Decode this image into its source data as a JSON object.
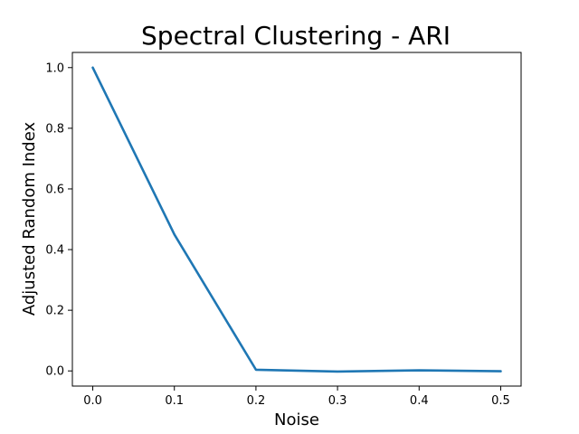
{
  "chart_data": {
    "type": "line",
    "title": "Spectral Clustering - ARI",
    "xlabel": "Noise",
    "ylabel": "Adjusted Random Index",
    "x": [
      0.0,
      0.1,
      0.2,
      0.3,
      0.4,
      0.5
    ],
    "series": [
      {
        "values": [
          1.0,
          0.45,
          0.004,
          -0.002,
          0.002,
          -0.001
        ],
        "color": "#1f77b4"
      }
    ],
    "xlim": [
      -0.025,
      0.525
    ],
    "ylim": [
      -0.05,
      1.05
    ],
    "xticks": [
      "0.0",
      "0.1",
      "0.2",
      "0.3",
      "0.4",
      "0.5"
    ],
    "yticks": [
      "0.0",
      "0.2",
      "0.4",
      "0.6",
      "0.8",
      "1.0"
    ],
    "grid": false,
    "legend": "none"
  }
}
